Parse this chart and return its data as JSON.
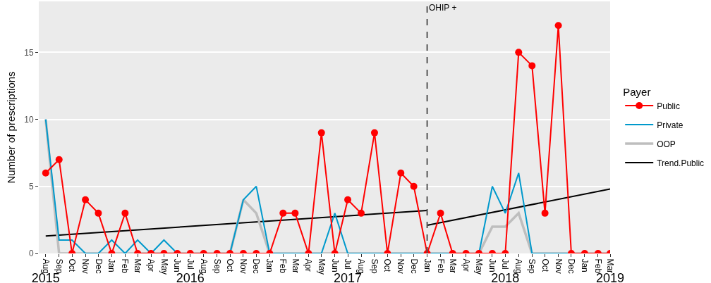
{
  "chart_data": {
    "type": "line",
    "ylabel": "Number of prescriptions",
    "legend_title": "Payer",
    "x": [
      "2015-08",
      "2015-09",
      "2015-10",
      "2015-11",
      "2015-12",
      "2016-01",
      "2016-02",
      "2016-03",
      "2016-04",
      "2016-05",
      "2016-06",
      "2016-07",
      "2016-08",
      "2016-09",
      "2016-10",
      "2016-11",
      "2016-12",
      "2017-01",
      "2017-02",
      "2017-03",
      "2017-04",
      "2017-05",
      "2017-06",
      "2017-07",
      "2017-08",
      "2017-09",
      "2017-10",
      "2017-11",
      "2017-12",
      "2018-01",
      "2018-02",
      "2018-03",
      "2018-04",
      "2018-05",
      "2018-06",
      "2018-07",
      "2018-08",
      "2018-09",
      "2018-10",
      "2018-11",
      "2018-12",
      "2019-01",
      "2019-02",
      "2019-03"
    ],
    "series": [
      {
        "name": "Public",
        "color": "#ff0000",
        "marker": "circle",
        "values": [
          6,
          7,
          0,
          4,
          3,
          0,
          3,
          0,
          0,
          0,
          0,
          0,
          0,
          0,
          0,
          0,
          0,
          0,
          3,
          3,
          0,
          9,
          0,
          4,
          3,
          9,
          0,
          6,
          5,
          0,
          3,
          0,
          0,
          0,
          0,
          0,
          15,
          14,
          3,
          17,
          0,
          0,
          0,
          0
        ]
      },
      {
        "name": "Private",
        "color": "#0099cc",
        "marker": "none",
        "values": [
          10,
          1,
          1,
          0,
          0,
          1,
          0,
          1,
          0,
          1,
          0,
          0,
          0,
          0,
          0,
          4,
          5,
          0,
          0,
          0,
          0,
          0,
          3,
          0,
          0,
          0,
          0,
          0,
          0,
          0,
          0,
          0,
          0,
          0,
          5,
          3,
          6,
          0,
          0,
          0,
          0,
          0,
          null,
          null
        ]
      },
      {
        "name": "OOP",
        "color": "#bebebe",
        "marker": "none",
        "values": [
          10,
          0,
          0,
          0,
          0,
          0,
          0,
          0,
          0,
          0,
          0,
          0,
          0,
          0,
          0,
          4,
          3,
          0,
          0,
          0,
          0,
          0,
          0,
          0,
          0,
          0,
          0,
          0,
          0,
          0,
          0,
          0,
          0,
          0,
          2,
          2,
          3,
          0,
          0,
          0,
          0,
          0,
          0,
          0
        ]
      },
      {
        "name": "Trend.Public",
        "color": "#000000",
        "marker": "none",
        "x": [
          "2015-08",
          "2018-01"
        ],
        "values": [
          1.3,
          3.2
        ]
      },
      {
        "color": "#000000",
        "marker": "none",
        "x": [
          "2018-01",
          "2019-03"
        ],
        "values": [
          2.1,
          4.8
        ]
      }
    ],
    "xlim": [
      "2015-07-16",
      "2019-03-01"
    ],
    "xticks": [
      {
        "value": "2015-08",
        "label": "Aug"
      },
      {
        "value": "2015-09",
        "label": "Sep"
      },
      {
        "value": "2015-10",
        "label": "Oct"
      },
      {
        "value": "2015-11",
        "label": "Nov"
      },
      {
        "value": "2015-12",
        "label": "Dec"
      },
      {
        "value": "2016-01",
        "label": "Jan"
      },
      {
        "value": "2016-02",
        "label": "Feb"
      },
      {
        "value": "2016-03",
        "label": "Mar"
      },
      {
        "value": "2016-04",
        "label": "Apr"
      },
      {
        "value": "2016-05",
        "label": "May"
      },
      {
        "value": "2016-06",
        "label": "Jun"
      },
      {
        "value": "2016-07",
        "label": "Jul"
      },
      {
        "value": "2016-08",
        "label": "Aug"
      },
      {
        "value": "2016-09",
        "label": "Sep"
      },
      {
        "value": "2016-10",
        "label": "Oct"
      },
      {
        "value": "2016-11",
        "label": "Nov"
      },
      {
        "value": "2016-12",
        "label": "Dec"
      },
      {
        "value": "2017-01",
        "label": "Jan"
      },
      {
        "value": "2017-02",
        "label": "Feb"
      },
      {
        "value": "2017-03",
        "label": "Mar"
      },
      {
        "value": "2017-04",
        "label": "Apr"
      },
      {
        "value": "2017-05",
        "label": "May"
      },
      {
        "value": "2017-06",
        "label": "Jun"
      },
      {
        "value": "2017-07",
        "label": "Jul"
      },
      {
        "value": "2017-08",
        "label": "Aug"
      },
      {
        "value": "2017-09",
        "label": "Sep"
      },
      {
        "value": "2017-10",
        "label": "Oct"
      },
      {
        "value": "2017-11",
        "label": "Nov"
      },
      {
        "value": "2017-12",
        "label": "Dec"
      },
      {
        "value": "2018-01",
        "label": "Jan"
      },
      {
        "value": "2018-02",
        "label": "Feb"
      },
      {
        "value": "2018-03",
        "label": "Mar"
      },
      {
        "value": "2018-04",
        "label": "Apr"
      },
      {
        "value": "2018-05",
        "label": "May"
      },
      {
        "value": "2018-06",
        "label": "Jun"
      },
      {
        "value": "2018-07",
        "label": "Jul"
      },
      {
        "value": "2018-08",
        "label": "Aug"
      },
      {
        "value": "2018-09",
        "label": "Sep"
      },
      {
        "value": "2018-10",
        "label": "Oct"
      },
      {
        "value": "2018-11",
        "label": "Nov"
      },
      {
        "value": "2018-12",
        "label": "Dec"
      },
      {
        "value": "2019-01",
        "label": "Jan"
      },
      {
        "value": "2019-02",
        "label": "Feb"
      },
      {
        "value": "2019-03",
        "label": "Mar"
      }
    ],
    "x2lim": [
      "2015-07-16",
      "2019-03-01"
    ],
    "x2ticks": [
      {
        "value": "2015-08",
        "label": "2015"
      },
      {
        "value": "2016-07",
        "label": "2016"
      },
      {
        "value": "2017-07",
        "label": "2017"
      },
      {
        "value": "2018-07",
        "label": "2018"
      },
      {
        "value": "2019-03",
        "label": "2019"
      }
    ],
    "ylim": [
      0,
      18.8
    ],
    "yticks": [
      0,
      5,
      10,
      15
    ],
    "ref_lines": [
      {
        "axis": "x",
        "value": "2018-01",
        "label": "OHIP +",
        "color": "#555555",
        "line_style": "dashed"
      }
    ],
    "grid": "y",
    "legend": "right",
    "line_style": "solid"
  }
}
